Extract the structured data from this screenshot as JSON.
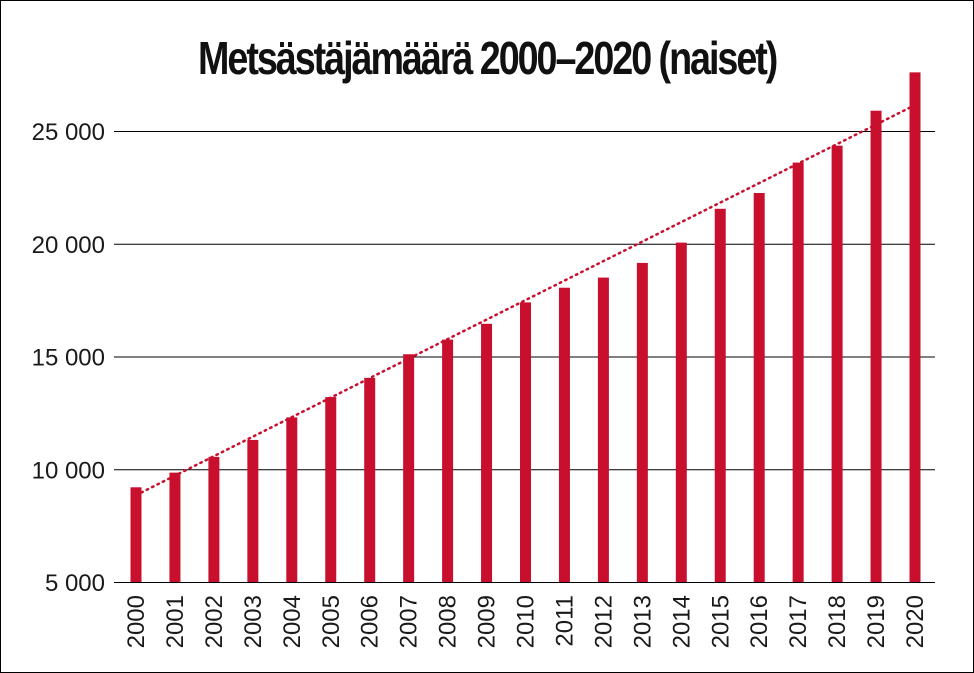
{
  "chart_data": {
    "type": "bar",
    "title": "Metsästäjämäärä 2000–2020 (naiset)",
    "xlabel": "",
    "ylabel": "",
    "categories": [
      "2000",
      "2001",
      "2002",
      "2003",
      "2004",
      "2005",
      "2006",
      "2007",
      "2008",
      "2009",
      "2010",
      "2011",
      "2012",
      "2013",
      "2014",
      "2015",
      "2016",
      "2017",
      "2018",
      "2019",
      "2020"
    ],
    "values": [
      9200,
      9850,
      10550,
      11300,
      12300,
      13200,
      14050,
      15100,
      15750,
      16450,
      17400,
      18050,
      18500,
      19150,
      20050,
      21550,
      22250,
      23600,
      24350,
      25900,
      27600
    ],
    "ylim": [
      5000,
      27600
    ],
    "yticks": [
      5000,
      10000,
      15000,
      20000,
      25000
    ],
    "ytick_labels": [
      "5 000",
      "10 000",
      "15 000",
      "20 000",
      "25 000"
    ],
    "grid": true,
    "trendline": {
      "style": "dotted",
      "start": 8850,
      "end": 26150
    },
    "colors": {
      "bar": "#c8102e",
      "trend": "#c8102e",
      "grid": "#000000"
    }
  }
}
